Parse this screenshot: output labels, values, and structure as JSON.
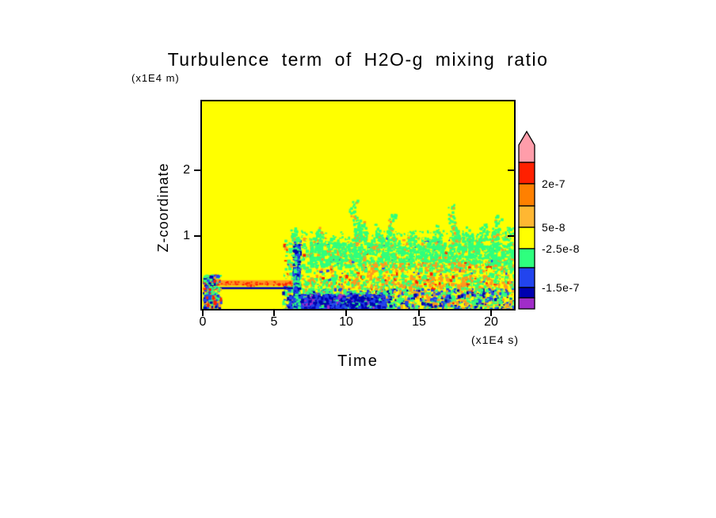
{
  "chart_data": {
    "type": "heatmap",
    "title": "Turbulence term of H2O-g mixing ratio",
    "xlabel": "Time",
    "x_unit": "(x1E4 s)",
    "ylabel": "Z-coordinate",
    "y_unit": "(x1E4 m)",
    "x_range": [
      0,
      21.6
    ],
    "y_range": [
      0,
      3.0
    ],
    "xtick_labels": [
      "0",
      "5",
      "10",
      "15",
      "20"
    ],
    "ytick_labels": [
      "1",
      "2"
    ],
    "background_value_band": "between -2.5e-8 and 5e-8 (yellow)",
    "palette": {
      "background": "#ffff00",
      "yellow": "#ffff00",
      "green": "#2eff7e",
      "orange": "#ff9a1e",
      "red": "#ff2000",
      "blue": "#2244ee",
      "navy": "#0000b0",
      "purple": "#a02cc8"
    },
    "colorbar": {
      "segments": [
        {
          "name": "pink-arrow-above-2e-7",
          "color": "#ff9daa"
        },
        {
          "name": "red",
          "color": "#ff2000"
        },
        {
          "name": "orange-dark",
          "color": "#ff8000"
        },
        {
          "name": "orange-light",
          "color": "#ffb732"
        },
        {
          "name": "yellow",
          "color": "#ffff00"
        },
        {
          "name": "green",
          "color": "#2eff7e"
        },
        {
          "name": "blue",
          "color": "#2244ee"
        },
        {
          "name": "navy",
          "color": "#0000b0"
        },
        {
          "name": "purple",
          "color": "#a02cc8"
        }
      ],
      "labels": [
        {
          "text": "2e-7"
        },
        {
          "text": "5e-8"
        },
        {
          "text": "-2.5e-8"
        },
        {
          "text": "-1.5e-7"
        }
      ]
    },
    "features": [
      {
        "type": "speckles",
        "name": "turbulent-field",
        "t": [
          5.55,
          21.6
        ],
        "z": [
          0.02,
          1.04
        ],
        "count": 2200,
        "cell": 3,
        "colors": [
          [
            "green",
            0.55
          ],
          [
            "yellow",
            0.25
          ],
          [
            "orange",
            0.12
          ],
          [
            "blue",
            0.05
          ],
          [
            "red",
            0.03
          ]
        ]
      },
      {
        "type": "speckles",
        "name": "dense-green-band",
        "t": [
          7.4,
          21.6
        ],
        "z": [
          0.63,
          0.97
        ],
        "count": 1200,
        "cell": 3,
        "colors": [
          [
            "green",
            0.82
          ],
          [
            "yellow",
            0.1
          ],
          [
            "orange",
            0.08
          ]
        ]
      },
      {
        "type": "speckles",
        "name": "band-top-edge",
        "t": [
          6.4,
          21.6
        ],
        "z": [
          1.0,
          1.14
        ],
        "count": 240,
        "cell": 2,
        "colors": [
          [
            "green",
            0.75
          ],
          [
            "yellow",
            0.25
          ]
        ]
      },
      {
        "type": "speckles",
        "name": "mid-orange-row",
        "t": [
          11.0,
          21.6
        ],
        "z": [
          0.55,
          0.68
        ],
        "count": 230,
        "cell": 3,
        "colors": [
          [
            "orange",
            0.5
          ],
          [
            "green",
            0.3
          ],
          [
            "yellow",
            0.15
          ],
          [
            "red",
            0.05
          ]
        ]
      },
      {
        "type": "hband",
        "name": "spinup-streak-orange",
        "t": [
          0.35,
          6.3
        ],
        "z": [
          0.335,
          0.415
        ],
        "color": "orange"
      },
      {
        "type": "speckles",
        "name": "spinup-streak-red",
        "t": [
          0.5,
          6.25
        ],
        "z": [
          0.35,
          0.4
        ],
        "count": 140,
        "cell": 2,
        "colors": [
          [
            "red",
            0.55
          ],
          [
            "orange",
            0.45
          ]
        ]
      },
      {
        "type": "hband",
        "name": "spinup-streak-navy",
        "t": [
          0.6,
          6.3
        ],
        "z": [
          0.285,
          0.315
        ],
        "color": "navy"
      },
      {
        "type": "speckles",
        "name": "streak-continuation",
        "t": [
          6.3,
          21.6
        ],
        "z": [
          0.3,
          0.5
        ],
        "count": 420,
        "cell": 3,
        "colors": [
          [
            "orange",
            0.45
          ],
          [
            "green",
            0.3
          ],
          [
            "yellow",
            0.17
          ],
          [
            "red",
            0.08
          ]
        ]
      },
      {
        "type": "speckles",
        "name": "initial-burst",
        "t": [
          0.05,
          1.2
        ],
        "z": [
          0.0,
          0.5
        ],
        "count": 280,
        "cell": 3,
        "colors": [
          [
            "green",
            0.35
          ],
          [
            "blue",
            0.22
          ],
          [
            "navy",
            0.12
          ],
          [
            "red",
            0.13
          ],
          [
            "orange",
            0.18
          ]
        ]
      },
      {
        "type": "speckles",
        "name": "bottom-mixed-layer",
        "t": [
          5.55,
          21.6
        ],
        "z": [
          0.0,
          0.3
        ],
        "count": 1100,
        "cell": 3,
        "colors": [
          [
            "green",
            0.34
          ],
          [
            "blue",
            0.22
          ],
          [
            "navy",
            0.14
          ],
          [
            "orange",
            0.18
          ],
          [
            "yellow",
            0.12
          ]
        ]
      },
      {
        "type": "speckles",
        "name": "bottom-blue-patch",
        "t": [
          6.0,
          12.6
        ],
        "z": [
          0.0,
          0.22
        ],
        "count": 700,
        "cell": 3,
        "colors": [
          [
            "blue",
            0.45
          ],
          [
            "navy",
            0.4
          ],
          [
            "purple",
            0.1
          ],
          [
            "green",
            0.05
          ]
        ]
      },
      {
        "type": "speckles",
        "name": "onset-column",
        "t": [
          6.25,
          6.7
        ],
        "z": [
          0.0,
          0.95
        ],
        "count": 300,
        "cell": 3,
        "colors": [
          [
            "green",
            0.4
          ],
          [
            "blue",
            0.38
          ],
          [
            "navy",
            0.22
          ]
        ]
      },
      {
        "type": "plume",
        "t": 6.4,
        "ztop": 1.18,
        "count": 26
      },
      {
        "type": "plume",
        "t": 8.2,
        "ztop": 1.2,
        "count": 30
      },
      {
        "type": "plume",
        "t": 10.55,
        "ztop": 1.58,
        "count": 80
      },
      {
        "type": "plume",
        "t": 11.0,
        "ztop": 1.3,
        "count": 40
      },
      {
        "type": "plume",
        "t": 12.2,
        "ztop": 1.25,
        "count": 35
      },
      {
        "type": "plume",
        "t": 13.15,
        "ztop": 1.38,
        "count": 55
      },
      {
        "type": "plume",
        "t": 14.6,
        "ztop": 1.15,
        "count": 22
      },
      {
        "type": "plume",
        "t": 16.1,
        "ztop": 1.22,
        "count": 30
      },
      {
        "type": "plume",
        "t": 17.35,
        "ztop": 1.52,
        "count": 70
      },
      {
        "type": "plume",
        "t": 18.4,
        "ztop": 1.2,
        "count": 28
      },
      {
        "type": "plume",
        "t": 19.6,
        "ztop": 1.25,
        "count": 32
      },
      {
        "type": "plume",
        "t": 20.4,
        "ztop": 1.36,
        "count": 50
      },
      {
        "type": "plume",
        "t": 21.2,
        "ztop": 1.2,
        "count": 25
      }
    ]
  }
}
